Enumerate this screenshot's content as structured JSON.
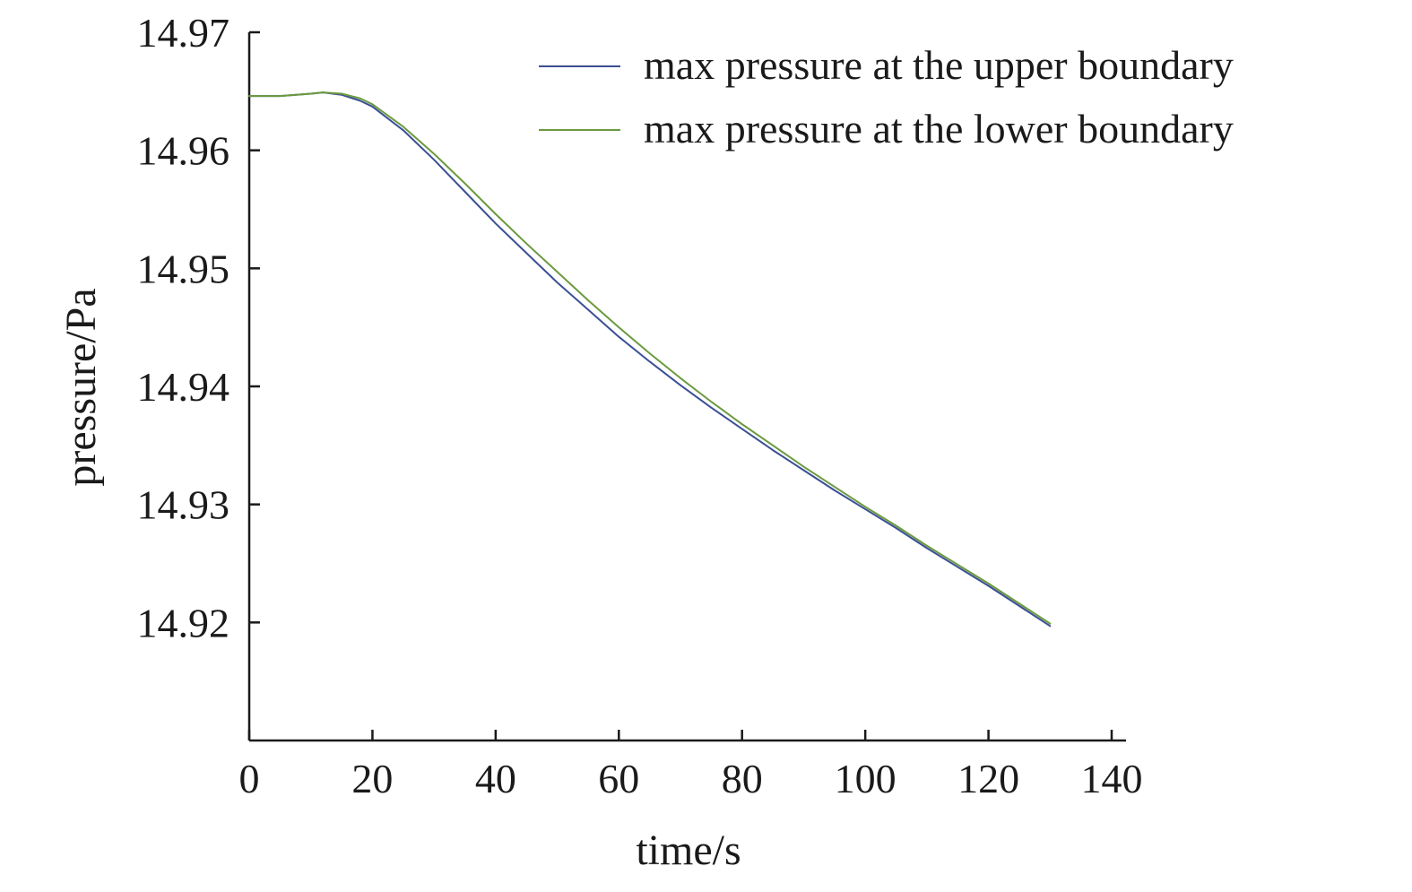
{
  "chart_data": {
    "type": "line",
    "title": "",
    "xlabel": "time/s",
    "ylabel": "pressure/Pa",
    "xlim": [
      0,
      140
    ],
    "ylim": [
      14.91,
      14.97
    ],
    "x_ticks": [
      0,
      20,
      40,
      60,
      80,
      100,
      120,
      140
    ],
    "x_tick_labels": [
      "0",
      "20",
      "40",
      "60",
      "80",
      "100",
      "120",
      "140"
    ],
    "y_ticks": [
      14.92,
      14.93,
      14.94,
      14.95,
      14.96,
      14.97
    ],
    "y_tick_labels": [
      "14.92",
      "14.93",
      "14.94",
      "14.95",
      "14.96",
      "14.97"
    ],
    "grid": false,
    "legend_position": "top-right",
    "series": [
      {
        "name": "max pressure at the upper boundary",
        "color": "#3a4f95",
        "x": [
          0,
          5,
          10,
          12,
          15,
          18,
          20,
          25,
          30,
          35,
          40,
          45,
          50,
          55,
          60,
          65,
          70,
          75,
          80,
          85,
          90,
          95,
          100,
          105,
          110,
          115,
          120,
          125,
          130
        ],
        "y": [
          14.9646,
          14.9646,
          14.9648,
          14.9649,
          14.9647,
          14.9642,
          14.9637,
          14.9617,
          14.9592,
          14.9565,
          14.9538,
          14.9513,
          14.9488,
          14.9465,
          14.9442,
          14.9421,
          14.9401,
          14.9382,
          14.9364,
          14.9346,
          14.9329,
          14.9312,
          14.9296,
          14.928,
          14.9263,
          14.9247,
          14.9231,
          14.9214,
          14.9197
        ]
      },
      {
        "name": "max pressure at the lower boundary",
        "color": "#6b9a3e",
        "x": [
          0,
          5,
          10,
          12,
          15,
          18,
          20,
          25,
          30,
          35,
          40,
          45,
          50,
          55,
          60,
          65,
          70,
          75,
          80,
          85,
          90,
          95,
          100,
          105,
          110,
          115,
          120,
          125,
          130
        ],
        "y": [
          14.9646,
          14.9646,
          14.9648,
          14.9649,
          14.9648,
          14.9644,
          14.9639,
          14.962,
          14.9597,
          14.9572,
          14.9546,
          14.9521,
          14.9497,
          14.9473,
          14.945,
          14.9428,
          14.9407,
          14.9387,
          14.9368,
          14.935,
          14.9332,
          14.9315,
          14.9298,
          14.9282,
          14.9265,
          14.9249,
          14.9233,
          14.9216,
          14.9199
        ]
      }
    ]
  }
}
